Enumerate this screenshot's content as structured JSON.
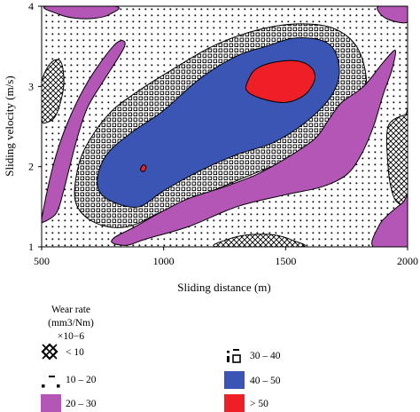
{
  "chart_data": {
    "type": "contour",
    "xlabel": "Sliding distance (m)",
    "ylabel": "Sliding velocity (m/s)",
    "xlim": [
      500,
      2000
    ],
    "ylim": [
      1,
      4
    ],
    "x_ticks": [
      500,
      1000,
      1500,
      2000
    ],
    "y_ticks": [
      1,
      2,
      3,
      4
    ],
    "grid": false,
    "legend": {
      "placement": "bottom",
      "title_lines": [
        "Wear rate",
        "(mm3/Nm)",
        "×10−6"
      ],
      "entries": [
        {
          "label": "< 10",
          "pattern": "crosshatch"
        },
        {
          "label": "30 – 40",
          "pattern": "squares"
        },
        {
          "label": "10 – 20",
          "pattern": "dots"
        },
        {
          "label": "40 – 50",
          "color": "#3a55b4"
        },
        {
          "label": "20 – 30",
          "color": "#b356b6"
        },
        {
          "label": "> 50",
          "color": "#ee2026"
        }
      ]
    },
    "colors": {
      "band_20_30": "#b356b6",
      "band_40_50": "#3a55b4",
      "band_gt_50": "#ee2026"
    },
    "regions": [
      {
        "range": "< 10",
        "points": [
          [
            500,
            3.05
          ],
          [
            540,
            3.3
          ],
          [
            580,
            3.3
          ],
          [
            590,
            3.0
          ],
          [
            560,
            2.65
          ],
          [
            520,
            2.55
          ],
          [
            500,
            2.6
          ]
        ]
      },
      {
        "range": "< 10",
        "points": [
          [
            1920,
            2.5
          ],
          [
            1990,
            2.65
          ],
          [
            2000,
            2.65
          ],
          [
            2000,
            1.6
          ],
          [
            1960,
            1.55
          ],
          [
            1935,
            1.7
          ],
          [
            1920,
            2.0
          ]
        ]
      },
      {
        "range": "< 10",
        "points": [
          [
            1220,
            1.0
          ],
          [
            1270,
            1.1
          ],
          [
            1350,
            1.15
          ],
          [
            1450,
            1.15
          ],
          [
            1530,
            1.08
          ],
          [
            1560,
            1.0
          ]
        ]
      },
      {
        "range": "20 – 30",
        "points": [
          [
            520,
            4.0
          ],
          [
            570,
            3.9
          ],
          [
            640,
            3.85
          ],
          [
            720,
            3.85
          ],
          [
            780,
            3.9
          ],
          [
            800,
            4.0
          ]
        ]
      },
      {
        "range": "20 – 30",
        "points": [
          [
            1880,
            4.0
          ],
          [
            1910,
            3.85
          ],
          [
            2000,
            3.8
          ],
          [
            2000,
            4.0
          ]
        ]
      },
      {
        "range": "20 – 30",
        "points": [
          [
            500,
            1.35
          ],
          [
            530,
            1.8
          ],
          [
            560,
            2.15
          ],
          [
            600,
            2.5
          ],
          [
            660,
            2.9
          ],
          [
            730,
            3.25
          ],
          [
            810,
            3.55
          ],
          [
            840,
            3.5
          ],
          [
            760,
            3.1
          ],
          [
            690,
            2.75
          ],
          [
            650,
            2.4
          ],
          [
            615,
            2.0
          ],
          [
            590,
            1.7
          ],
          [
            560,
            1.42
          ],
          [
            500,
            1.3
          ]
        ]
      },
      {
        "range": "20 – 30",
        "points": [
          [
            930,
            1.1
          ],
          [
            1100,
            1.25
          ],
          [
            1300,
            1.5
          ],
          [
            1500,
            1.65
          ],
          [
            1650,
            1.75
          ],
          [
            1750,
            1.9
          ],
          [
            1810,
            2.15
          ],
          [
            1860,
            2.5
          ],
          [
            1900,
            2.9
          ],
          [
            1935,
            3.2
          ],
          [
            1950,
            3.45
          ],
          [
            1900,
            3.3
          ],
          [
            1820,
            3.0
          ],
          [
            1730,
            2.8
          ],
          [
            1680,
            2.6
          ],
          [
            1620,
            2.35
          ],
          [
            1500,
            2.1
          ],
          [
            1380,
            1.9
          ],
          [
            1250,
            1.75
          ],
          [
            1100,
            1.6
          ],
          [
            1000,
            1.45
          ],
          [
            940,
            1.35
          ],
          [
            870,
            1.23
          ],
          [
            800,
            1.12
          ],
          [
            790,
            1.05
          ],
          [
            850,
            1.02
          ]
        ]
      },
      {
        "range": "20 – 30",
        "points": [
          [
            1860,
            1.0
          ],
          [
            1880,
            1.25
          ],
          [
            1920,
            1.4
          ],
          [
            1980,
            1.55
          ],
          [
            2000,
            1.6
          ],
          [
            2000,
            1.0
          ]
        ]
      },
      {
        "range": "40 – 50",
        "points": [
          [
            735,
            1.7
          ],
          [
            800,
            1.55
          ],
          [
            900,
            1.5
          ],
          [
            1000,
            1.7
          ],
          [
            1150,
            1.95
          ],
          [
            1300,
            2.15
          ],
          [
            1450,
            2.3
          ],
          [
            1580,
            2.55
          ],
          [
            1680,
            2.85
          ],
          [
            1720,
            3.15
          ],
          [
            1700,
            3.45
          ],
          [
            1640,
            3.58
          ],
          [
            1530,
            3.6
          ],
          [
            1420,
            3.5
          ],
          [
            1300,
            3.38
          ],
          [
            1150,
            3.1
          ],
          [
            1000,
            2.7
          ],
          [
            880,
            2.45
          ],
          [
            780,
            2.2
          ],
          [
            735,
            1.95
          ]
        ]
      },
      {
        "range": "> 50",
        "points": [
          [
            1340,
            2.95
          ],
          [
            1400,
            2.85
          ],
          [
            1500,
            2.8
          ],
          [
            1580,
            2.9
          ],
          [
            1620,
            3.1
          ],
          [
            1600,
            3.25
          ],
          [
            1540,
            3.32
          ],
          [
            1450,
            3.3
          ],
          [
            1380,
            3.22
          ],
          [
            1350,
            3.1
          ]
        ]
      },
      {
        "range": "> 50",
        "points": [
          [
            905,
            1.96
          ],
          [
            915,
            2.02
          ],
          [
            928,
            2.0
          ],
          [
            920,
            1.94
          ]
        ]
      }
    ]
  }
}
